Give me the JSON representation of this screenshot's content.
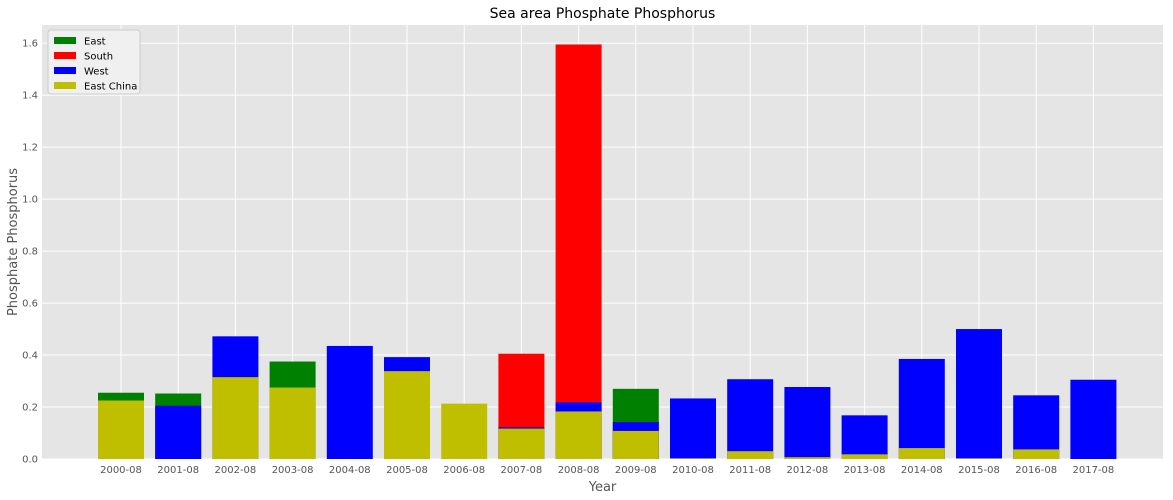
{
  "chart_data": {
    "type": "bar",
    "stacked": false,
    "title": "Sea area Phosphate Phosphorus",
    "xlabel": "Year",
    "ylabel": "Phosphate Phosphorus",
    "ylim": [
      0,
      1.67
    ],
    "yticks": [
      "0.0",
      "0.2",
      "0.4",
      "0.6",
      "0.8",
      "1.0",
      "1.2",
      "1.4",
      "1.6"
    ],
    "grid": true,
    "legend_position": "top-left",
    "categories": [
      "2000-08",
      "2001-08",
      "2002-08",
      "2003-08",
      "2004-08",
      "2005-08",
      "2006-08",
      "2007-08",
      "2008-08",
      "2009-08",
      "2010-08",
      "2011-08",
      "2012-08",
      "2013-08",
      "2014-08",
      "2015-08",
      "2016-08",
      "2017-08"
    ],
    "series": [
      {
        "name": "East",
        "color": "#008000",
        "values": [
          0.255,
          0.252,
          0,
          0.375,
          0,
          0,
          0,
          0,
          0,
          0.27,
          0,
          0,
          0,
          0,
          0,
          0,
          0,
          0
        ]
      },
      {
        "name": "South",
        "color": "#ff0000",
        "values": [
          0,
          0,
          0,
          0,
          0,
          0,
          0,
          0.405,
          1.595,
          0,
          0,
          0,
          0,
          0,
          0,
          0,
          0,
          0
        ]
      },
      {
        "name": "West",
        "color": "#0000ff",
        "values": [
          0,
          0.205,
          0.472,
          0,
          0.435,
          0.392,
          0,
          0.122,
          0.218,
          0.142,
          0.233,
          0.307,
          0.277,
          0.168,
          0.385,
          0.5,
          0.245,
          0.305
        ]
      },
      {
        "name": "East China",
        "color": "#bfbf00",
        "values": [
          0.225,
          0,
          0.315,
          0.275,
          0,
          0.338,
          0.213,
          0.117,
          0.183,
          0.108,
          0.003,
          0.03,
          0.007,
          0.018,
          0.042,
          0.003,
          0.037,
          0
        ]
      }
    ]
  }
}
